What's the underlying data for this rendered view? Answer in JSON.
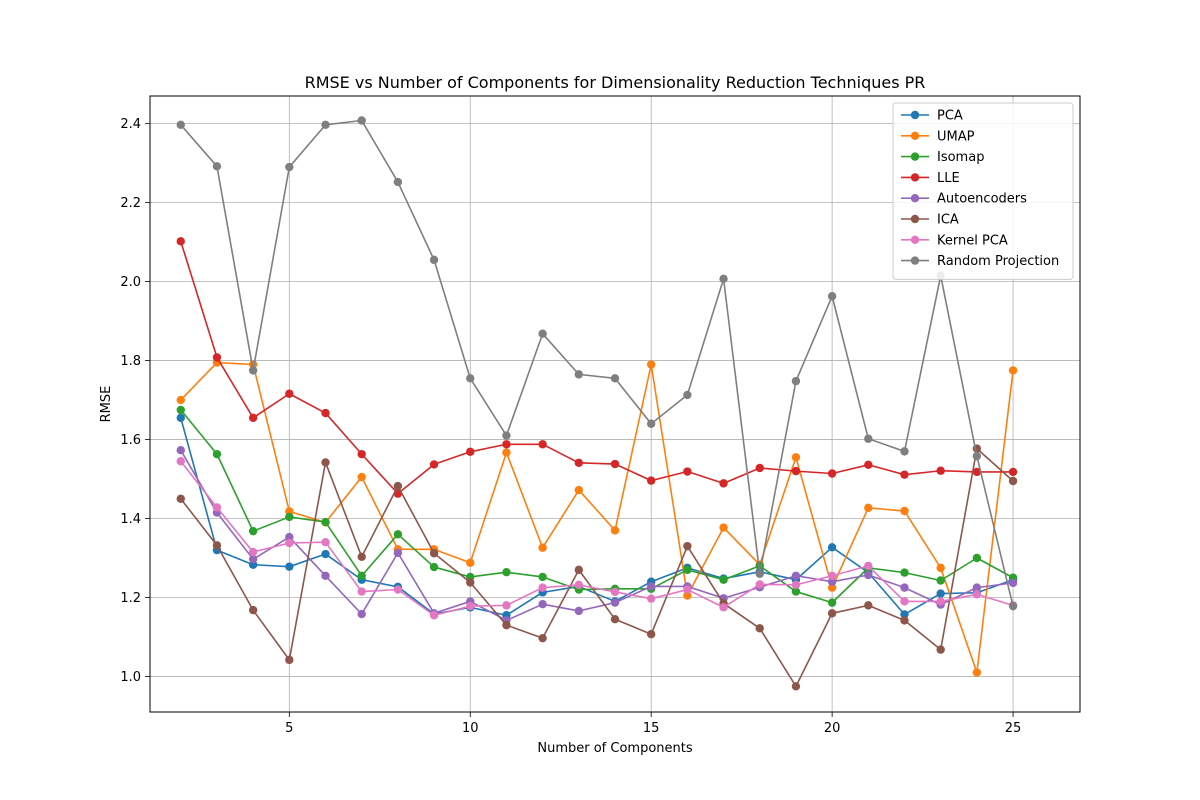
{
  "chart_data": {
    "type": "line",
    "title": "RMSE vs Number of Components for Dimensionality Reduction Techniques PR",
    "xlabel": "Number of Components",
    "ylabel": "RMSE",
    "xlim": [
      1.15,
      26.85
    ],
    "ylim": [
      0.91,
      2.47
    ],
    "xticks": [
      5,
      10,
      15,
      20,
      25
    ],
    "yticks": [
      1.0,
      1.2,
      1.4,
      1.6,
      1.8,
      2.0,
      2.2,
      2.4
    ],
    "grid": true,
    "legend_position": "top-right",
    "x": [
      2,
      3,
      4,
      5,
      6,
      7,
      8,
      9,
      10,
      11,
      12,
      13,
      14,
      15,
      16,
      17,
      18,
      19,
      20,
      21,
      22,
      23,
      24,
      25
    ],
    "series": [
      {
        "name": "PCA",
        "color": "#1f77b4",
        "values": [
          1.655,
          1.32,
          1.283,
          1.278,
          1.31,
          1.245,
          1.227,
          1.158,
          1.175,
          1.155,
          1.213,
          1.228,
          1.19,
          1.24,
          1.275,
          1.248,
          1.265,
          1.245,
          1.327,
          1.263,
          1.157,
          1.21,
          1.212,
          1.245
        ]
      },
      {
        "name": "UMAP",
        "color": "#ff7f0e",
        "values": [
          1.7,
          1.795,
          1.79,
          1.418,
          1.39,
          1.505,
          1.322,
          1.322,
          1.288,
          1.567,
          1.326,
          1.472,
          1.37,
          1.79,
          1.205,
          1.377,
          1.283,
          1.555,
          1.225,
          1.427,
          1.419,
          1.275,
          1.01,
          1.775
        ]
      },
      {
        "name": "Isomap",
        "color": "#2ca02c",
        "values": [
          1.675,
          1.563,
          1.368,
          1.404,
          1.391,
          1.255,
          1.36,
          1.277,
          1.252,
          1.264,
          1.252,
          1.22,
          1.222,
          1.222,
          1.27,
          1.245,
          1.28,
          1.215,
          1.187,
          1.275,
          1.263,
          1.243,
          1.3,
          1.25
        ]
      },
      {
        "name": "LLE",
        "color": "#d62728",
        "values": [
          2.102,
          1.808,
          1.655,
          1.716,
          1.667,
          1.563,
          1.463,
          1.537,
          1.569,
          1.588,
          1.588,
          1.541,
          1.538,
          1.496,
          1.519,
          1.489,
          1.528,
          1.52,
          1.514,
          1.536,
          1.511,
          1.521,
          1.518,
          1.518
        ]
      },
      {
        "name": "Autoencoders",
        "color": "#9467bd",
        "values": [
          1.573,
          1.415,
          1.297,
          1.353,
          1.255,
          1.158,
          1.313,
          1.16,
          1.19,
          1.142,
          1.183,
          1.166,
          1.187,
          1.228,
          1.228,
          1.198,
          1.226,
          1.255,
          1.24,
          1.257,
          1.225,
          1.182,
          1.225,
          1.237
        ]
      },
      {
        "name": "ICA",
        "color": "#8c564b",
        "values": [
          1.45,
          1.332,
          1.168,
          1.042,
          1.542,
          1.303,
          1.482,
          1.312,
          1.238,
          1.13,
          1.097,
          1.27,
          1.145,
          1.107,
          1.33,
          1.185,
          1.122,
          0.975,
          1.16,
          1.18,
          1.142,
          1.068,
          1.577,
          1.495
        ]
      },
      {
        "name": "Kernel PCA",
        "color": "#e377c2",
        "values": [
          1.545,
          1.428,
          1.315,
          1.338,
          1.34,
          1.215,
          1.22,
          1.155,
          1.178,
          1.18,
          1.225,
          1.232,
          1.214,
          1.197,
          1.22,
          1.175,
          1.233,
          1.232,
          1.255,
          1.28,
          1.19,
          1.19,
          1.208,
          1.18
        ]
      },
      {
        "name": "Random Projection",
        "color": "#7f7f7f",
        "values": [
          2.397,
          2.292,
          1.775,
          2.29,
          2.397,
          2.408,
          2.252,
          2.055,
          1.755,
          1.61,
          1.868,
          1.765,
          1.755,
          1.64,
          1.713,
          2.007,
          1.26,
          1.748,
          1.963,
          1.602,
          1.57,
          2.015,
          1.558,
          1.178
        ]
      }
    ]
  }
}
